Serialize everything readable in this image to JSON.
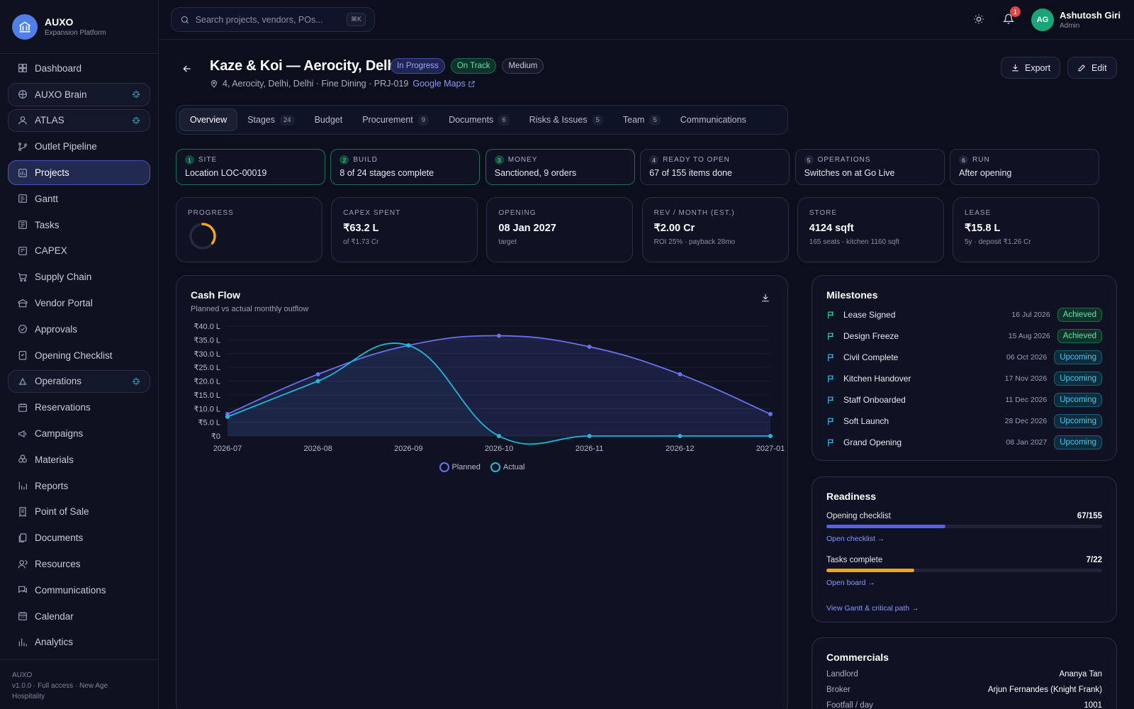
{
  "app": {
    "name": "AUXO",
    "subtitle": "Expansion Platform"
  },
  "sidebar": {
    "items": [
      {
        "label": "Dashboard",
        "icon": "dashboard-icon"
      },
      {
        "label": "AUXO Brain",
        "icon": "brain-icon",
        "ai": true
      },
      {
        "label": "ATLAS",
        "icon": "atlas-icon",
        "ai": true
      },
      {
        "label": "Outlet Pipeline",
        "icon": "pipeline-icon"
      },
      {
        "label": "Projects",
        "icon": "projects-icon",
        "active": true
      },
      {
        "label": "Gantt",
        "icon": "gantt-icon"
      },
      {
        "label": "Tasks",
        "icon": "tasks-icon"
      },
      {
        "label": "CAPEX",
        "icon": "capex-icon"
      },
      {
        "label": "Supply Chain",
        "icon": "cart-icon"
      },
      {
        "label": "Vendor Portal",
        "icon": "vendor-icon"
      },
      {
        "label": "Approvals",
        "icon": "approval-icon"
      },
      {
        "label": "Opening Checklist",
        "icon": "checklist-icon"
      },
      {
        "label": "Operations",
        "icon": "operations-icon",
        "ai": true
      },
      {
        "label": "Reservations",
        "icon": "reservations-icon"
      },
      {
        "label": "Campaigns",
        "icon": "megaphone-icon"
      },
      {
        "label": "Materials",
        "icon": "materials-icon"
      },
      {
        "label": "Reports",
        "icon": "reports-icon"
      },
      {
        "label": "Point of Sale",
        "icon": "receipt-icon"
      },
      {
        "label": "Documents",
        "icon": "documents-icon"
      },
      {
        "label": "Resources",
        "icon": "resources-icon"
      },
      {
        "label": "Communications",
        "icon": "chat-icon"
      },
      {
        "label": "Calendar",
        "icon": "calendar-icon"
      },
      {
        "label": "Analytics",
        "icon": "analytics-icon"
      }
    ],
    "footer": {
      "name": "AUXO",
      "line1": "v1.0.0 · Full access · New Age",
      "line2": "Hospitality"
    }
  },
  "topbar": {
    "search_placeholder": "Search projects, vendors, POs...",
    "search_shortcut": "⌘K",
    "notifications": "1",
    "user": {
      "initials": "AG",
      "name": "Ashutosh Giri",
      "role": "Admin"
    }
  },
  "project": {
    "title": "Kaze & Koi — Aerocity, Delhi",
    "status_badges": [
      "In Progress",
      "On Track",
      "Medium"
    ],
    "location": "4, Aerocity, Delhi, Delhi · Fine Dining · PRJ-019",
    "maps_link": "Google Maps",
    "export_label": "Export",
    "edit_label": "Edit"
  },
  "tabs": [
    {
      "label": "Overview",
      "count": null,
      "active": true
    },
    {
      "label": "Stages",
      "count": "24"
    },
    {
      "label": "Budget",
      "count": null
    },
    {
      "label": "Procurement",
      "count": "9"
    },
    {
      "label": "Documents",
      "count": "6"
    },
    {
      "label": "Risks & Issues",
      "count": "5"
    },
    {
      "label": "Team",
      "count": "5"
    },
    {
      "label": "Communications",
      "count": null
    }
  ],
  "lifecycle": [
    {
      "num": "1",
      "label": "SITE",
      "value": "Location LOC-00019",
      "done": true
    },
    {
      "num": "2",
      "label": "BUILD",
      "value": "8 of 24 stages complete",
      "done": true
    },
    {
      "num": "3",
      "label": "MONEY",
      "value": "Sanctioned, 9 orders",
      "done": true
    },
    {
      "num": "4",
      "label": "READY TO OPEN",
      "value": "67 of 155 items done",
      "done": false
    },
    {
      "num": "5",
      "label": "OPERATIONS",
      "value": "Switches on at Go Live",
      "done": false
    },
    {
      "num": "6",
      "label": "RUN",
      "value": "After opening",
      "done": false
    }
  ],
  "kpis": [
    {
      "label": "PROGRESS",
      "value": "",
      "sub": "",
      "progress": 0.35
    },
    {
      "label": "CAPEX SPENT",
      "value": "₹63.2 L",
      "sub": "of ₹1.73 Cr"
    },
    {
      "label": "OPENING",
      "value": "08 Jan 2027",
      "sub": "target"
    },
    {
      "label": "REV / MONTH (EST.)",
      "value": "₹2.00 Cr",
      "sub": "ROI 25% · payback 28mo"
    },
    {
      "label": "STORE",
      "value": "4124 sqft",
      "sub": "165 seats · kitchen 1160 sqft"
    },
    {
      "label": "LEASE",
      "value": "₹15.8 L",
      "sub": "5y · deposit ₹1.26 Cr"
    }
  ],
  "cashflow": {
    "title": "Cash Flow",
    "subtitle": "Planned vs actual monthly outflow"
  },
  "chart_data": {
    "type": "area",
    "title": "Cash Flow",
    "subtitle": "Planned vs actual monthly outflow",
    "x": [
      "2026-07",
      "2026-08",
      "2026-09",
      "2026-10",
      "2026-11",
      "2026-12",
      "2027-01"
    ],
    "y_ticks": [
      "₹0",
      "₹5.0 L",
      "₹10.0 L",
      "₹15.0 L",
      "₹20.0 L",
      "₹25.0 L",
      "₹30.0 L",
      "₹35.0 L",
      "₹40.0 L"
    ],
    "ylim": [
      0,
      40
    ],
    "y_unit": "L",
    "series": [
      {
        "name": "Planned",
        "values": [
          8,
          22.5,
          33,
          36.5,
          32.5,
          22.5,
          8
        ],
        "color": "#6b6ff0"
      },
      {
        "name": "Actual",
        "values": [
          7,
          20,
          33,
          0,
          0,
          0,
          0
        ],
        "color": "#22b8d8"
      }
    ],
    "legend": "bottom",
    "grid": true
  },
  "milestones": {
    "title": "Milestones",
    "items": [
      {
        "name": "Lease Signed",
        "date": "16 Jul 2026",
        "status": "Achieved"
      },
      {
        "name": "Design Freeze",
        "date": "15 Aug 2026",
        "status": "Achieved"
      },
      {
        "name": "Civil Complete",
        "date": "06 Oct 2026",
        "status": "Upcoming"
      },
      {
        "name": "Kitchen Handover",
        "date": "17 Nov 2026",
        "status": "Upcoming"
      },
      {
        "name": "Staff Onboarded",
        "date": "11 Dec 2026",
        "status": "Upcoming"
      },
      {
        "name": "Soft Launch",
        "date": "28 Dec 2026",
        "status": "Upcoming"
      },
      {
        "name": "Grand Opening",
        "date": "08 Jan 2027",
        "status": "Upcoming"
      }
    ]
  },
  "readiness": {
    "title": "Readiness",
    "checklist": {
      "label": "Opening checklist",
      "count": "67/155",
      "fraction": 0.432,
      "link": "Open checklist →",
      "color": "#5b5ee8"
    },
    "tasks": {
      "label": "Tasks complete",
      "count": "7/22",
      "fraction": 0.318,
      "link": "Open board →",
      "color": "#f4a41c"
    },
    "gantt_link": "View Gantt & critical path →"
  },
  "commercials": {
    "title": "Commercials",
    "rows": [
      {
        "k": "Landlord",
        "v": "Ananya Tan"
      },
      {
        "k": "Broker",
        "v": "Arjun Fernandes (Knight Frank)"
      },
      {
        "k": "Footfall / day",
        "v": "1001"
      }
    ]
  }
}
